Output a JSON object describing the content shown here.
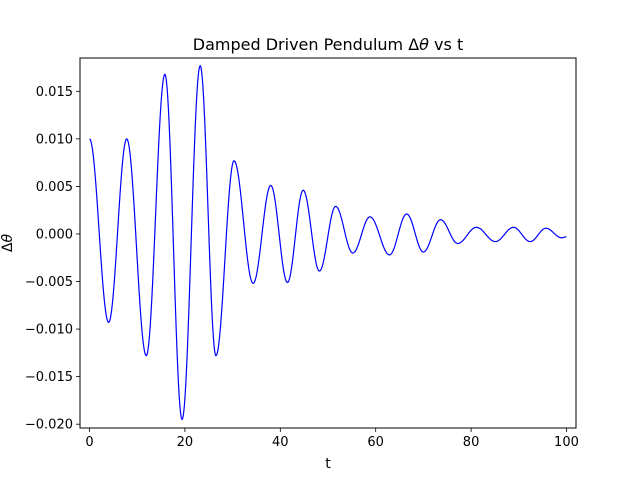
{
  "chart_data": {
    "type": "line",
    "title": "Damped Driven Pendulum Δθ vs t",
    "title_parts": {
      "before": "Damped Driven Pendulum ",
      "symbol_delta": "Δ",
      "symbol_theta": "θ",
      "after": " vs t"
    },
    "xlabel": "t",
    "ylabel": "Δθ",
    "xlim": [
      -2,
      102
    ],
    "ylim": [
      -0.0204,
      0.0185
    ],
    "xticks": [
      0,
      20,
      40,
      60,
      80,
      100
    ],
    "xtick_labels": [
      "0",
      "20",
      "40",
      "60",
      "80",
      "100"
    ],
    "yticks": [
      -0.02,
      -0.015,
      -0.01,
      -0.005,
      0.0,
      0.005,
      0.01,
      0.015
    ],
    "ytick_labels": [
      "−0.020",
      "−0.015",
      "−0.010",
      "−0.005",
      "0.000",
      "0.005",
      "0.010",
      "0.015"
    ],
    "grid": false,
    "legend": "none",
    "line_color": "#0000ff",
    "series": [
      {
        "extrema_t": [
          0,
          4.0,
          7.8,
          11.9,
          15.8,
          19.4,
          23.2,
          26.5,
          30.3,
          34.3,
          38.0,
          41.5,
          44.8,
          48.2,
          51.6,
          55.2,
          58.8,
          62.9,
          66.5,
          70.0,
          73.6,
          77.2,
          81.1,
          85.1,
          88.9,
          92.4,
          95.7,
          99.0,
          100
        ],
        "extrema_y": [
          0.01,
          -0.0093,
          0.01,
          -0.0128,
          0.0168,
          -0.0195,
          0.0177,
          -0.0128,
          0.0077,
          -0.0052,
          0.0051,
          -0.0051,
          0.0046,
          -0.0039,
          0.0029,
          -0.002,
          0.0018,
          -0.0022,
          0.0021,
          -0.0019,
          0.0015,
          -0.001,
          0.0007,
          -0.0008,
          0.0007,
          -0.0008,
          0.0006,
          -0.0004,
          -0.0003
        ]
      }
    ]
  }
}
